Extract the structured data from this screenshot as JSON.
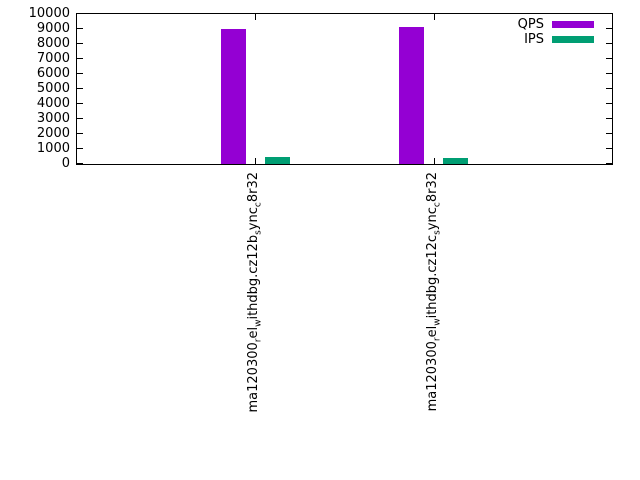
{
  "chart_data": {
    "type": "bar",
    "title": "",
    "xlabel": "",
    "ylabel": "",
    "ylim": [
      0,
      10000
    ],
    "ytick_step": 1000,
    "ytick_labels": [
      "0",
      "1000",
      "2000",
      "3000",
      "4000",
      "5000",
      "6000",
      "7000",
      "8000",
      "9000",
      "10000"
    ],
    "grid": false,
    "legend_position": "top-right",
    "categories": [
      {
        "segments": [
          {
            "t": "ma120300"
          },
          {
            "t": "r",
            "sub": true
          },
          {
            "t": "el"
          },
          {
            "t": "w",
            "sub": true
          },
          {
            "t": "ithdbg.cz12b"
          },
          {
            "t": "s",
            "sub": true
          },
          {
            "t": "ync"
          },
          {
            "t": "c",
            "sub": true
          },
          {
            "t": "8r32"
          }
        ]
      },
      {
        "segments": [
          {
            "t": "ma120300"
          },
          {
            "t": "r",
            "sub": true
          },
          {
            "t": "el"
          },
          {
            "t": "w",
            "sub": true
          },
          {
            "t": "ithdbg.cz12c"
          },
          {
            "t": "s",
            "sub": true
          },
          {
            "t": "ync"
          },
          {
            "t": "c",
            "sub": true
          },
          {
            "t": "8r32"
          }
        ]
      }
    ],
    "series": [
      {
        "name": "QPS",
        "color": "#9400d3",
        "values": [
          9000,
          9120
        ]
      },
      {
        "name": "IPS",
        "color": "#009e73",
        "values": [
          450,
          430
        ]
      }
    ]
  }
}
